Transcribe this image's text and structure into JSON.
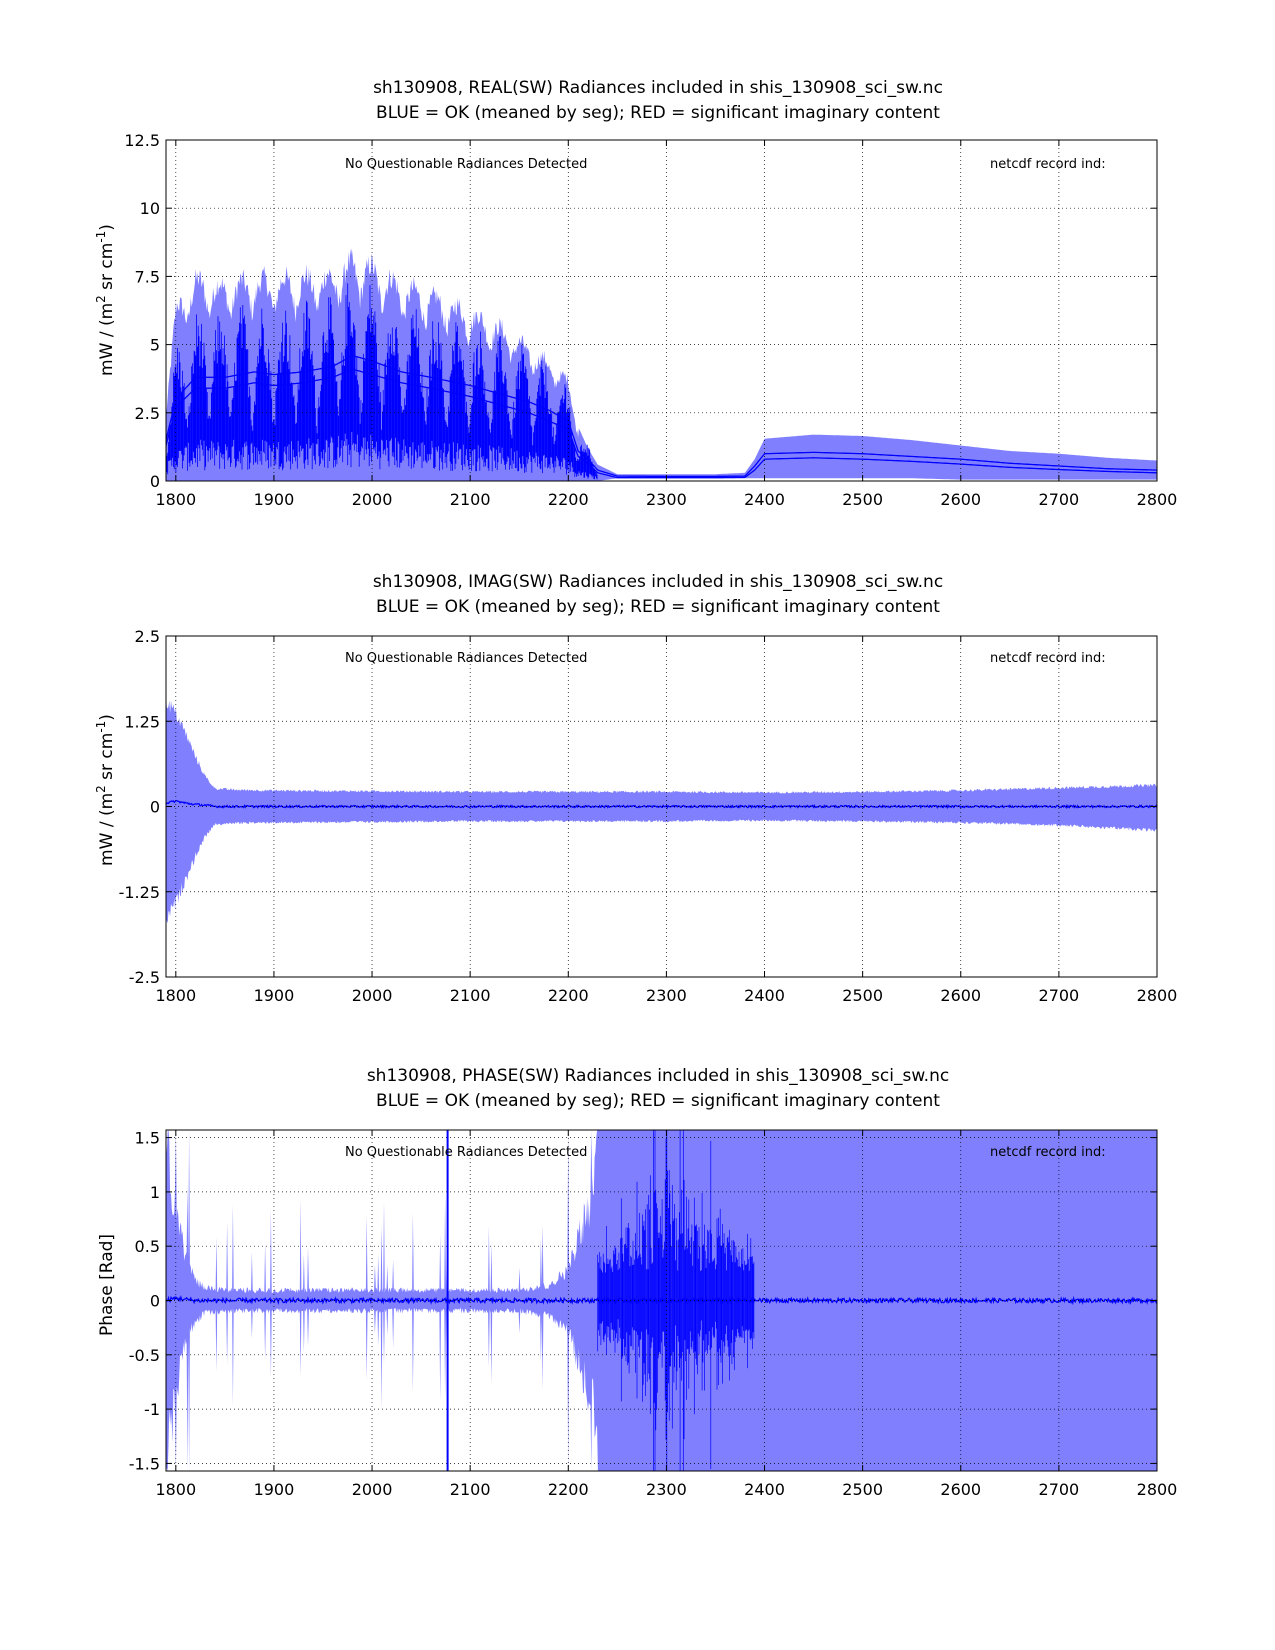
{
  "colors": {
    "envelope": "#8080ff",
    "mean": "#0000ff",
    "flag": "#ff0000",
    "grid": "#000000",
    "background": "#ffffff"
  },
  "chart_data": [
    {
      "id": "real",
      "type": "line",
      "title_line1": "sh130908, REAL(SW) Radiances included in shis_130908_sci_sw.nc",
      "title_line2": "BLUE = OK (meaned by seg); RED = significant imaginary content",
      "ylabel_main": "mW / (m",
      "ylabel_sup1": "2",
      "ylabel_mid": " sr cm",
      "ylabel_sup2": "-1",
      "ylabel_end": ")",
      "xlabel": "",
      "xlim": [
        1790,
        2800
      ],
      "ylim": [
        0,
        12.5
      ],
      "grid": true,
      "x_ticks": [
        "1800",
        "1900",
        "2000",
        "2100",
        "2200",
        "2300",
        "2400",
        "2500",
        "2600",
        "2700",
        "2800"
      ],
      "y_ticks": [
        {
          "value": 0,
          "label": "0"
        },
        {
          "value": 2.5,
          "label": "2.5"
        },
        {
          "value": 5,
          "label": "5"
        },
        {
          "value": 7.5,
          "label": "7.5"
        },
        {
          "value": 10,
          "label": "10"
        },
        {
          "value": 12.5,
          "label": "12.5"
        }
      ],
      "annotation_left": "No Questionable Radiances Detected",
      "annotation_right": "netcdf record ind:",
      "series": [
        {
          "x": [
            1790,
            1800,
            1820,
            1850,
            1880,
            1900,
            1930,
            1960,
            1980,
            2000,
            2030,
            2060,
            2100,
            2130,
            2160,
            2180,
            2200,
            2210,
            2220,
            2230,
            2250,
            2300,
            2350,
            2380,
            2390,
            2400,
            2450,
            2500,
            2550,
            2600,
            2650,
            2700,
            2750,
            2800
          ],
          "upper": [
            3.0,
            6.5,
            7.6,
            7.4,
            7.6,
            7.6,
            7.7,
            7.8,
            8.3,
            8.1,
            7.4,
            7.0,
            6.4,
            5.8,
            5.0,
            4.5,
            3.8,
            2.0,
            1.2,
            0.6,
            0.25,
            0.25,
            0.25,
            0.3,
            0.8,
            1.55,
            1.7,
            1.65,
            1.5,
            1.3,
            1.1,
            1.0,
            0.85,
            0.75
          ],
          "lower": [
            0.0,
            0.0,
            0.0,
            0.0,
            0.0,
            0.0,
            0.0,
            0.0,
            0.0,
            0.0,
            0.0,
            0.0,
            0.0,
            0.0,
            0.0,
            0.0,
            0.0,
            0.0,
            0.0,
            0.0,
            0.1,
            0.1,
            0.1,
            0.1,
            0.1,
            0.1,
            0.1,
            0.1,
            0.1,
            0.05,
            0.05,
            0.05,
            0.05,
            0.05
          ],
          "mean": [
            1.5,
            3.0,
            3.8,
            3.8,
            4.0,
            3.9,
            4.0,
            4.2,
            4.6,
            4.4,
            4.0,
            3.8,
            3.5,
            3.2,
            2.9,
            2.6,
            2.2,
            1.1,
            0.8,
            0.4,
            0.18,
            0.17,
            0.17,
            0.18,
            0.55,
            1.0,
            1.05,
            1.0,
            0.9,
            0.8,
            0.65,
            0.55,
            0.45,
            0.4
          ],
          "mean2": [
            1.3,
            2.7,
            3.4,
            3.4,
            3.6,
            3.5,
            3.6,
            3.8,
            4.1,
            3.9,
            3.6,
            3.4,
            3.1,
            2.8,
            2.5,
            2.2,
            1.9,
            0.9,
            0.65,
            0.3,
            0.12,
            0.12,
            0.12,
            0.13,
            0.4,
            0.8,
            0.85,
            0.8,
            0.72,
            0.62,
            0.5,
            0.42,
            0.35,
            0.3
          ]
        }
      ]
    },
    {
      "id": "imag",
      "type": "line",
      "title_line1": "sh130908, IMAG(SW) Radiances included in shis_130908_sci_sw.nc",
      "title_line2": "BLUE = OK (meaned by seg); RED = significant imaginary content",
      "ylabel_main": "mW / (m",
      "ylabel_sup1": "2",
      "ylabel_mid": " sr cm",
      "ylabel_sup2": "-1",
      "ylabel_end": ")",
      "xlabel": "",
      "xlim": [
        1790,
        2800
      ],
      "ylim": [
        -2.5,
        2.5
      ],
      "grid": true,
      "x_ticks": [
        "1800",
        "1900",
        "2000",
        "2100",
        "2200",
        "2300",
        "2400",
        "2500",
        "2600",
        "2700",
        "2800"
      ],
      "y_ticks": [
        {
          "value": -2.5,
          "label": "-2.5"
        },
        {
          "value": -1.25,
          "label": "-1.25"
        },
        {
          "value": 0,
          "label": "0"
        },
        {
          "value": 1.25,
          "label": "1.25"
        },
        {
          "value": 2.5,
          "label": "2.5"
        }
      ],
      "annotation_left": "No Questionable Radiances Detected",
      "annotation_right": "netcdf record ind:",
      "series": [
        {
          "x": [
            1790,
            1800,
            1810,
            1820,
            1830,
            1840,
            1860,
            1900,
            2000,
            2100,
            2200,
            2300,
            2400,
            2500,
            2600,
            2700,
            2750,
            2800
          ],
          "upper": [
            1.6,
            1.4,
            1.1,
            0.75,
            0.45,
            0.27,
            0.25,
            0.24,
            0.23,
            0.22,
            0.22,
            0.22,
            0.21,
            0.22,
            0.24,
            0.28,
            0.3,
            0.32
          ],
          "lower": [
            -1.7,
            -1.45,
            -1.1,
            -0.75,
            -0.45,
            -0.27,
            -0.25,
            -0.24,
            -0.23,
            -0.22,
            -0.22,
            -0.22,
            -0.21,
            -0.22,
            -0.24,
            -0.28,
            -0.32,
            -0.36
          ],
          "mean": [
            0.05,
            0.08,
            0.05,
            0.03,
            0.02,
            0.0,
            0.0,
            0.0,
            0.0,
            0.0,
            0.0,
            0.0,
            0.0,
            0.0,
            0.0,
            0.0,
            0.0,
            0.0
          ]
        }
      ]
    },
    {
      "id": "phase",
      "type": "line",
      "title_line1": "sh130908, PHASE(SW) Radiances included in shis_130908_sci_sw.nc",
      "title_line2": "BLUE = OK (meaned by seg); RED = significant imaginary content",
      "ylabel_main": "Phase [Rad]",
      "ylabel_sup1": "",
      "ylabel_mid": "",
      "ylabel_sup2": "",
      "ylabel_end": "",
      "xlabel": "",
      "xlim": [
        1790,
        2800
      ],
      "ylim": [
        -1.57,
        1.57
      ],
      "grid": true,
      "x_ticks": [
        "1800",
        "1900",
        "2000",
        "2100",
        "2200",
        "2300",
        "2400",
        "2500",
        "2600",
        "2700",
        "2800"
      ],
      "y_ticks": [
        {
          "value": -1.5,
          "label": "-1.5"
        },
        {
          "value": -1,
          "label": "-1"
        },
        {
          "value": -0.5,
          "label": "-0.5"
        },
        {
          "value": 0,
          "label": "0"
        },
        {
          "value": 0.5,
          "label": "0.5"
        },
        {
          "value": 1,
          "label": "1"
        },
        {
          "value": 1.5,
          "label": "1.5"
        }
      ],
      "annotation_left": "No Questionable Radiances Detected",
      "annotation_right": "netcdf record ind:",
      "series": [
        {
          "x": [
            1790,
            1800,
            1810,
            1820,
            1830,
            1850,
            1900,
            2000,
            2100,
            2150,
            2180,
            2200,
            2210,
            2225,
            2230,
            2390,
            2400,
            2500,
            2600,
            2700,
            2800
          ],
          "upper": [
            1.57,
            0.9,
            0.4,
            0.2,
            0.12,
            0.1,
            0.1,
            0.1,
            0.1,
            0.1,
            0.15,
            0.3,
            0.6,
            1.0,
            1.57,
            1.57,
            1.57,
            1.57,
            1.57,
            1.57,
            1.57
          ],
          "lower": [
            -1.57,
            -0.9,
            -0.4,
            -0.2,
            -0.12,
            -0.1,
            -0.1,
            -0.1,
            -0.1,
            -0.1,
            -0.15,
            -0.3,
            -0.6,
            -1.0,
            -1.57,
            -1.57,
            -1.57,
            -1.57,
            -1.57,
            -1.57,
            -1.57
          ],
          "mean": [
            0.0,
            0.02,
            0.01,
            0.0,
            0.0,
            0.0,
            0.0,
            0.0,
            0.0,
            0.0,
            0.0,
            0.0,
            0.0,
            0.0,
            0.0,
            0.0,
            0.0,
            0.0,
            0.0,
            0.0,
            0.0
          ],
          "noisy_band": [
            2230,
            2390
          ],
          "spike_x": 2077
        }
      ]
    }
  ]
}
